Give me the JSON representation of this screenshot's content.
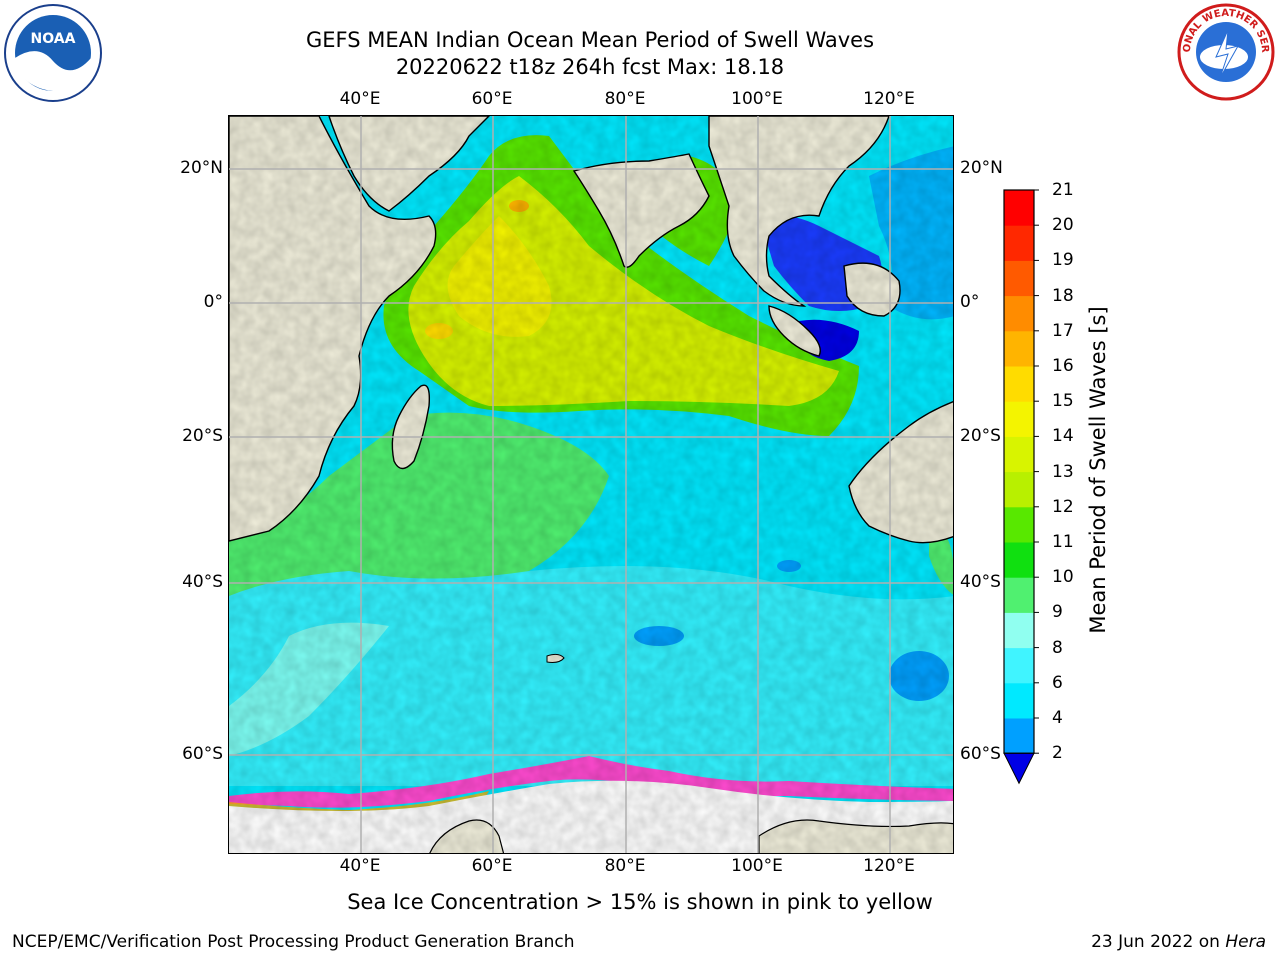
{
  "title": {
    "line1": "GEFS MEAN Indian Ocean Mean Period of Swell Waves",
    "line2": "20220622 t18z 264h fcst   Max: 18.18"
  },
  "axes": {
    "lon_ticks": [
      "40°E",
      "60°E",
      "80°E",
      "100°E",
      "120°E"
    ],
    "lat_ticks": [
      "20°N",
      "0°",
      "20°S",
      "40°S",
      "60°S"
    ]
  },
  "colorbar": {
    "label": "Mean Period of Swell Waves [s]",
    "ticks": [
      "2",
      "4",
      "6",
      "8",
      "9",
      "10",
      "11",
      "12",
      "13",
      "14",
      "15",
      "16",
      "17",
      "18",
      "19",
      "20",
      "21"
    ],
    "colors": [
      "#1a3cff",
      "#00a0ff",
      "#00e9ff",
      "#40f4ff",
      "#90fff0",
      "#50f070",
      "#10e010",
      "#58e800",
      "#b8f000",
      "#d8f400",
      "#f4f400",
      "#ffdc00",
      "#ffb400",
      "#ff8c00",
      "#ff5a00",
      "#ff2800",
      "#ff0000"
    ],
    "extend_color": "#0000e6"
  },
  "colors": {
    "land": "#efedda",
    "ocean_base": "#00e9ff",
    "sea_ice": "#ff4ad0",
    "grid": "#b0b0b0"
  },
  "note": "Sea Ice Concentration > 15% is shown in pink to yellow",
  "footer": {
    "left": "NCEP/EMC/Verification Post Processing Product Generation Branch",
    "right_prefix": "23 Jun 2022 on ",
    "right_italic": "Hera"
  },
  "logos": {
    "noaa_text": "NOAA",
    "nws_text": "NATIONAL WEATHER SERVICE"
  }
}
